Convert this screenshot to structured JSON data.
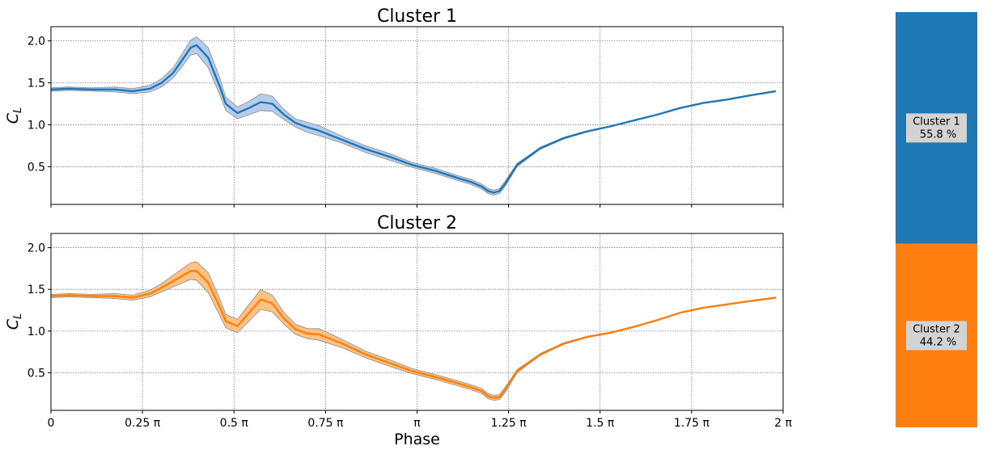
{
  "chart_data": [
    {
      "type": "line",
      "title": "Cluster 1",
      "ylabel": "C_L",
      "xlabel": "",
      "ylim": [
        0.05,
        2.17
      ],
      "yticks": [
        "0.5",
        "1.0",
        "1.5",
        "2.0"
      ],
      "xlim": [
        0,
        6.2832
      ],
      "xtick_labels": [
        "0",
        "0.25 π",
        "0.5 π",
        "0.75 π",
        "π",
        "1.25 π",
        "1.5 π",
        "1.75 π",
        "2 π"
      ],
      "grid": true,
      "color": "#1f77b4",
      "band_color": "#aec7e8",
      "series": [
        {
          "x": [
            0,
            0.15,
            0.35,
            0.55,
            0.7,
            0.85,
            0.95,
            1.05,
            1.15,
            1.2,
            1.25,
            1.35,
            1.45,
            1.5,
            1.6,
            1.7,
            1.8,
            1.9,
            2.0,
            2.1,
            2.2,
            2.3,
            2.5,
            2.7,
            2.9,
            3.1,
            3.3,
            3.5,
            3.6,
            3.7,
            3.75,
            3.8,
            3.85,
            3.9,
            4.0,
            4.1,
            4.2,
            4.4,
            4.6,
            4.8,
            5.0,
            5.2,
            5.4,
            5.6,
            5.8,
            6.0,
            6.22
          ],
          "y": [
            1.42,
            1.43,
            1.42,
            1.42,
            1.4,
            1.43,
            1.5,
            1.62,
            1.82,
            1.92,
            1.95,
            1.8,
            1.45,
            1.25,
            1.14,
            1.2,
            1.27,
            1.25,
            1.12,
            1.02,
            0.97,
            0.93,
            0.82,
            0.71,
            0.62,
            0.52,
            0.45,
            0.36,
            0.32,
            0.26,
            0.21,
            0.19,
            0.21,
            0.3,
            0.52,
            0.62,
            0.72,
            0.84,
            0.92,
            0.98,
            1.05,
            1.12,
            1.2,
            1.26,
            1.3,
            1.35,
            1.4
          ],
          "half_width": [
            0.02,
            0.02,
            0.02,
            0.03,
            0.03,
            0.04,
            0.05,
            0.06,
            0.08,
            0.09,
            0.1,
            0.12,
            0.1,
            0.08,
            0.07,
            0.08,
            0.1,
            0.09,
            0.06,
            0.05,
            0.06,
            0.06,
            0.04,
            0.04,
            0.04,
            0.03,
            0.03,
            0.03,
            0.03,
            0.03,
            0.03,
            0.03,
            0.03,
            0.03,
            0.02,
            0.015,
            0.012,
            0.01,
            0.008,
            0.006,
            0.005,
            0.004,
            0.004,
            0.003,
            0.003,
            0.003,
            0.003
          ]
        }
      ]
    },
    {
      "type": "line",
      "title": "Cluster 2",
      "ylabel": "C_L",
      "xlabel": "Phase",
      "ylim": [
        0.05,
        2.17
      ],
      "yticks": [
        "0.5",
        "1.0",
        "1.5",
        "2.0"
      ],
      "xlim": [
        0,
        6.2832
      ],
      "xtick_labels": [
        "0",
        "0.25 π",
        "0.5 π",
        "0.75 π",
        "π",
        "1.25 π",
        "1.5 π",
        "1.75 π",
        "2 π"
      ],
      "grid": true,
      "color": "#ff7f0e",
      "band_color": "#ffbb78",
      "series": [
        {
          "x": [
            0,
            0.15,
            0.35,
            0.55,
            0.7,
            0.85,
            0.95,
            1.05,
            1.15,
            1.2,
            1.25,
            1.35,
            1.45,
            1.5,
            1.6,
            1.7,
            1.8,
            1.9,
            2.0,
            2.1,
            2.2,
            2.3,
            2.5,
            2.7,
            2.9,
            3.1,
            3.3,
            3.5,
            3.6,
            3.7,
            3.75,
            3.8,
            3.85,
            3.9,
            4.0,
            4.1,
            4.2,
            4.4,
            4.6,
            4.8,
            5.0,
            5.2,
            5.4,
            5.6,
            5.8,
            6.0,
            6.22
          ],
          "y": [
            1.42,
            1.43,
            1.42,
            1.42,
            1.4,
            1.45,
            1.52,
            1.6,
            1.68,
            1.72,
            1.72,
            1.58,
            1.28,
            1.12,
            1.06,
            1.22,
            1.38,
            1.33,
            1.15,
            1.02,
            0.97,
            0.96,
            0.85,
            0.72,
            0.62,
            0.52,
            0.45,
            0.37,
            0.33,
            0.28,
            0.22,
            0.2,
            0.21,
            0.3,
            0.52,
            0.62,
            0.72,
            0.85,
            0.93,
            0.98,
            1.05,
            1.13,
            1.22,
            1.28,
            1.32,
            1.36,
            1.4
          ],
          "half_width": [
            0.02,
            0.02,
            0.02,
            0.03,
            0.03,
            0.04,
            0.05,
            0.07,
            0.09,
            0.1,
            0.11,
            0.12,
            0.1,
            0.08,
            0.08,
            0.1,
            0.12,
            0.1,
            0.07,
            0.06,
            0.06,
            0.07,
            0.05,
            0.04,
            0.04,
            0.03,
            0.03,
            0.03,
            0.03,
            0.03,
            0.03,
            0.03,
            0.03,
            0.03,
            0.02,
            0.015,
            0.012,
            0.01,
            0.008,
            0.006,
            0.005,
            0.004,
            0.004,
            0.003,
            0.003,
            0.003,
            0.003
          ]
        }
      ]
    },
    {
      "type": "bar",
      "orientation": "stacked-vertical",
      "categories": [
        "Cluster 1",
        "Cluster 2"
      ],
      "values": [
        55.8,
        44.2
      ],
      "labels": [
        "Cluster 1\n 55.8 %",
        "Cluster 2\n 44.2 %"
      ],
      "colors": [
        "#1f77b4",
        "#ff7f0e"
      ]
    }
  ]
}
